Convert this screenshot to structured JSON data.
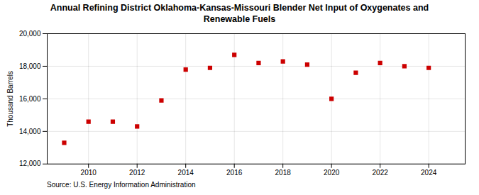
{
  "chart_data": {
    "type": "scatter",
    "title": "Annual Refining District Oklahoma-Kansas-Missouri Blender Net Input of Oxygenates and\nRenewable Fuels",
    "ylabel": "Thousand Barrels",
    "source": "Source: U.S. Energy Information Administration",
    "x": [
      2009,
      2010,
      2011,
      2012,
      2013,
      2014,
      2015,
      2016,
      2017,
      2018,
      2019,
      2020,
      2021,
      2022,
      2023,
      2024
    ],
    "values": [
      13300,
      14600,
      14600,
      14300,
      15900,
      17800,
      17900,
      18700,
      18200,
      18300,
      18100,
      16000,
      17600,
      18200,
      18000,
      17900
    ],
    "xlim": [
      2008.3,
      2025.5
    ],
    "xticks": [
      2010,
      2012,
      2014,
      2016,
      2018,
      2020,
      2022,
      2024
    ],
    "ylim": [
      12000,
      20000
    ],
    "yticks": [
      {
        "value": 12000,
        "label": "12,000"
      },
      {
        "value": 14000,
        "label": "14,000"
      },
      {
        "value": 16000,
        "label": "16,000"
      },
      {
        "value": 18000,
        "label": "18,000"
      },
      {
        "value": 20000,
        "label": "20,000"
      }
    ],
    "color": "#cc0000",
    "marker": "square",
    "grid": true
  }
}
